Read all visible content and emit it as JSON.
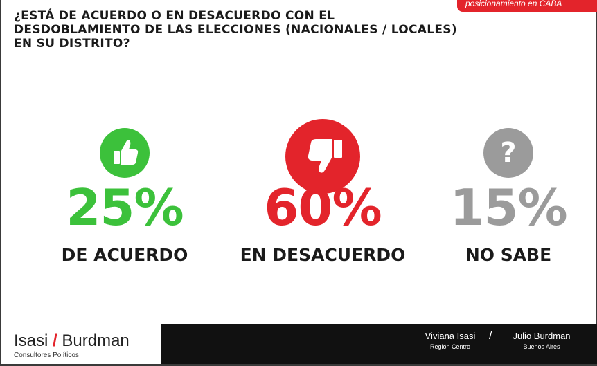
{
  "corner_tag": "posicionamiento en CABA",
  "question": {
    "lines": [
      "¿ESTÁ DE ACUERDO O EN DESACUERDO CON EL",
      "DESDOBLAMIENTO DE LAS ELECCIONES  (NACIONALES / LOCALES)",
      "EN SU DISTRITO?"
    ]
  },
  "chart_data": {
    "type": "pie",
    "title": "¿ESTÁ DE ACUERDO O EN DESACUERDO CON EL DESDOBLAMIENTO DE LAS ELECCIONES  (NACIONALES / LOCALES) EN SU DISTRITO?",
    "categories": [
      "DE ACUERDO",
      "EN DESACUERDO",
      "NO SABE"
    ],
    "values": [
      25,
      60,
      15
    ],
    "display": [
      "25%",
      "60%",
      "15%"
    ],
    "colors": [
      "#3cc13b",
      "#e3242b",
      "#9b9b9b"
    ],
    "icons": [
      "thumbs-up-icon",
      "thumbs-down-icon",
      "question-icon"
    ]
  },
  "footer": {
    "brand_left": "Isasi",
    "brand_slash": "/",
    "brand_right": "Burdman",
    "brand_sub": "Consultores Políticos",
    "people": [
      {
        "name": "Viviana Isasi",
        "region": "Región Centro"
      },
      {
        "name": "Julio Burdman",
        "region": "Buenos Aires"
      }
    ],
    "separator": "/"
  }
}
